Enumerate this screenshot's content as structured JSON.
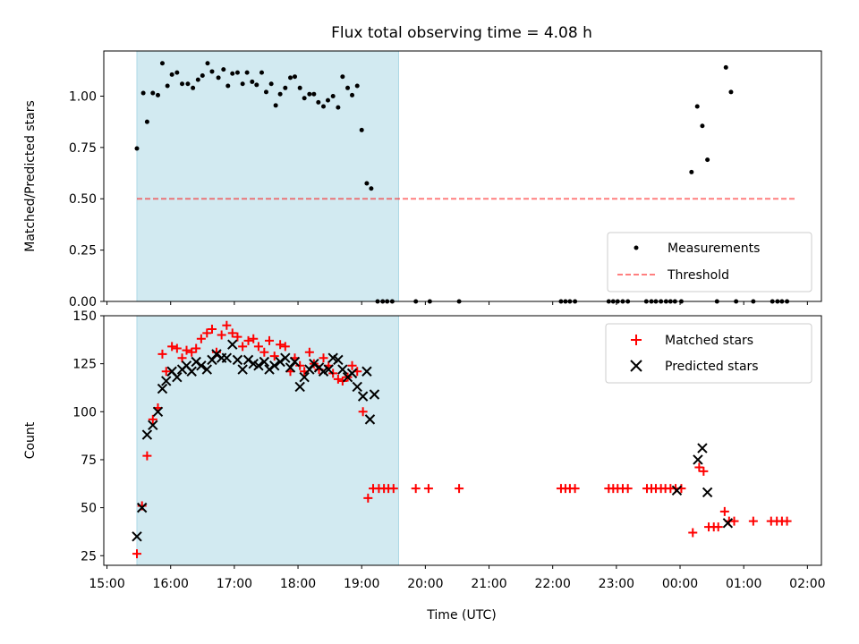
{
  "title": "Flux total observing time = 4.08 h",
  "colors": {
    "shade": "#add8e6",
    "threshold": "#ff0000",
    "matched": "#ff0000",
    "predicted": "#000000",
    "measure": "#000000"
  },
  "chart_data": [
    {
      "type": "scatter",
      "name": "ratio",
      "ylabel": "Matched/Predicted stars",
      "xlim": [
        -0.05,
        11.22
      ],
      "ylim": [
        0.0,
        1.22
      ],
      "yticks": [
        0.0,
        0.25,
        0.5,
        0.75,
        1.0
      ],
      "ytick_labels": [
        "0.00",
        "0.25",
        "0.50",
        "0.75",
        "1.00"
      ],
      "shaded_span": [
        0.47,
        4.58
      ],
      "threshold": {
        "label": "Threshold",
        "y": 0.5,
        "x": [
          0.47,
          10.8
        ]
      },
      "legend_position": "lower-right",
      "series": [
        {
          "name": "Measurements",
          "points": [
            [
              0.47,
              0.745
            ],
            [
              0.57,
              1.015
            ],
            [
              0.63,
              0.875
            ],
            [
              0.72,
              1.015
            ],
            [
              0.8,
              1.005
            ],
            [
              0.87,
              1.16
            ],
            [
              0.95,
              1.05
            ],
            [
              1.02,
              1.105
            ],
            [
              1.1,
              1.115
            ],
            [
              1.18,
              1.06
            ],
            [
              1.27,
              1.06
            ],
            [
              1.35,
              1.04
            ],
            [
              1.43,
              1.08
            ],
            [
              1.5,
              1.1
            ],
            [
              1.58,
              1.16
            ],
            [
              1.65,
              1.12
            ],
            [
              1.75,
              1.09
            ],
            [
              1.83,
              1.13
            ],
            [
              1.9,
              1.05
            ],
            [
              1.97,
              1.11
            ],
            [
              2.05,
              1.115
            ],
            [
              2.13,
              1.06
            ],
            [
              2.2,
              1.115
            ],
            [
              2.28,
              1.07
            ],
            [
              2.35,
              1.055
            ],
            [
              2.43,
              1.115
            ],
            [
              2.5,
              1.02
            ],
            [
              2.58,
              1.06
            ],
            [
              2.65,
              0.955
            ],
            [
              2.72,
              1.01
            ],
            [
              2.8,
              1.04
            ],
            [
              2.88,
              1.09
            ],
            [
              2.95,
              1.095
            ],
            [
              3.03,
              1.04
            ],
            [
              3.1,
              0.99
            ],
            [
              3.18,
              1.01
            ],
            [
              3.25,
              1.01
            ],
            [
              3.32,
              0.97
            ],
            [
              3.4,
              0.95
            ],
            [
              3.47,
              0.98
            ],
            [
              3.55,
              1.0
            ],
            [
              3.63,
              0.945
            ],
            [
              3.7,
              1.095
            ],
            [
              3.78,
              1.04
            ],
            [
              3.85,
              1.005
            ],
            [
              3.93,
              1.05
            ],
            [
              4.0,
              0.835
            ],
            [
              4.08,
              0.575
            ],
            [
              4.15,
              0.55
            ],
            [
              4.25,
              0.0
            ],
            [
              4.33,
              0.0
            ],
            [
              4.4,
              0.0
            ],
            [
              4.48,
              0.0
            ],
            [
              4.85,
              0.0
            ],
            [
              5.07,
              0.0
            ],
            [
              5.53,
              0.0
            ],
            [
              7.13,
              0.0
            ],
            [
              7.2,
              0.0
            ],
            [
              7.27,
              0.0
            ],
            [
              7.35,
              0.0
            ],
            [
              7.88,
              0.0
            ],
            [
              7.95,
              0.0
            ],
            [
              8.02,
              0.0
            ],
            [
              8.1,
              0.0
            ],
            [
              8.18,
              0.0
            ],
            [
              8.47,
              0.0
            ],
            [
              8.55,
              0.0
            ],
            [
              8.62,
              0.0
            ],
            [
              8.7,
              0.0
            ],
            [
              8.78,
              0.0
            ],
            [
              8.85,
              0.0
            ],
            [
              8.92,
              0.0
            ],
            [
              9.02,
              0.0
            ],
            [
              9.18,
              0.63
            ],
            [
              9.27,
              0.95
            ],
            [
              9.35,
              0.855
            ],
            [
              9.43,
              0.69
            ],
            [
              9.58,
              0.0
            ],
            [
              9.72,
              1.14
            ],
            [
              9.8,
              1.02
            ],
            [
              9.88,
              0.0
            ],
            [
              10.15,
              0.0
            ],
            [
              10.45,
              0.0
            ],
            [
              10.53,
              0.0
            ],
            [
              10.6,
              0.0
            ],
            [
              10.68,
              0.0
            ]
          ]
        }
      ]
    },
    {
      "type": "scatter",
      "name": "count",
      "xlabel": "Time (UTC)",
      "ylabel": "Count",
      "xlim": [
        -0.05,
        11.22
      ],
      "ylim": [
        20,
        150
      ],
      "yticks": [
        25,
        50,
        75,
        100,
        125,
        150
      ],
      "ytick_labels": [
        "25",
        "50",
        "75",
        "100",
        "125",
        "150"
      ],
      "xticks": [
        0,
        1,
        2,
        3,
        4,
        5,
        6,
        7,
        8,
        9,
        10,
        11
      ],
      "xtick_labels": [
        "15:00",
        "16:00",
        "17:00",
        "18:00",
        "19:00",
        "20:00",
        "21:00",
        "22:00",
        "23:00",
        "00:00",
        "01:00",
        "02:00"
      ],
      "shaded_span": [
        0.47,
        4.58
      ],
      "legend_position": "top-right",
      "series": [
        {
          "name": "Matched stars",
          "marker": "plus",
          "points": [
            [
              0.47,
              26
            ],
            [
              0.55,
              51
            ],
            [
              0.63,
              77
            ],
            [
              0.72,
              96
            ],
            [
              0.8,
              102
            ],
            [
              0.87,
              130
            ],
            [
              0.93,
              121
            ],
            [
              1.02,
              134
            ],
            [
              1.1,
              133
            ],
            [
              1.18,
              128
            ],
            [
              1.25,
              132
            ],
            [
              1.33,
              131
            ],
            [
              1.4,
              133
            ],
            [
              1.48,
              138
            ],
            [
              1.57,
              141
            ],
            [
              1.65,
              143
            ],
            [
              1.72,
              131
            ],
            [
              1.8,
              140
            ],
            [
              1.88,
              145
            ],
            [
              1.97,
              141
            ],
            [
              2.05,
              139
            ],
            [
              2.13,
              134
            ],
            [
              2.22,
              137
            ],
            [
              2.3,
              138
            ],
            [
              2.38,
              134
            ],
            [
              2.47,
              131
            ],
            [
              2.55,
              137
            ],
            [
              2.63,
              129
            ],
            [
              2.72,
              135
            ],
            [
              2.8,
              134
            ],
            [
              2.88,
              121
            ],
            [
              2.95,
              128
            ],
            [
              3.03,
              124
            ],
            [
              3.1,
              121
            ],
            [
              3.18,
              131
            ],
            [
              3.25,
              125
            ],
            [
              3.33,
              122
            ],
            [
              3.4,
              128
            ],
            [
              3.48,
              124
            ],
            [
              3.55,
              120
            ],
            [
              3.63,
              117
            ],
            [
              3.7,
              116
            ],
            [
              3.78,
              118
            ],
            [
              3.85,
              124
            ],
            [
              3.93,
              121
            ],
            [
              4.02,
              100
            ],
            [
              4.1,
              55
            ],
            [
              4.18,
              60
            ],
            [
              4.27,
              60
            ],
            [
              4.35,
              60
            ],
            [
              4.42,
              60
            ],
            [
              4.5,
              60
            ],
            [
              4.85,
              60
            ],
            [
              5.05,
              60
            ],
            [
              5.53,
              60
            ],
            [
              7.13,
              60
            ],
            [
              7.2,
              60
            ],
            [
              7.27,
              60
            ],
            [
              7.35,
              60
            ],
            [
              7.88,
              60
            ],
            [
              7.95,
              60
            ],
            [
              8.02,
              60
            ],
            [
              8.1,
              60
            ],
            [
              8.18,
              60
            ],
            [
              8.48,
              60
            ],
            [
              8.55,
              60
            ],
            [
              8.62,
              60
            ],
            [
              8.7,
              60
            ],
            [
              8.77,
              60
            ],
            [
              8.85,
              60
            ],
            [
              8.93,
              60
            ],
            [
              9.02,
              60
            ],
            [
              9.2,
              37
            ],
            [
              9.3,
              71
            ],
            [
              9.37,
              69
            ],
            [
              9.45,
              40
            ],
            [
              9.53,
              40
            ],
            [
              9.6,
              40
            ],
            [
              9.7,
              48
            ],
            [
              9.77,
              43
            ],
            [
              9.85,
              43
            ],
            [
              10.15,
              43
            ],
            [
              10.43,
              43
            ],
            [
              10.52,
              43
            ],
            [
              10.6,
              43
            ],
            [
              10.68,
              43
            ]
          ]
        },
        {
          "name": "Predicted stars",
          "marker": "x",
          "points": [
            [
              0.47,
              35
            ],
            [
              0.55,
              50
            ],
            [
              0.63,
              88
            ],
            [
              0.72,
              93
            ],
            [
              0.8,
              100
            ],
            [
              0.87,
              112
            ],
            [
              0.93,
              116
            ],
            [
              1.02,
              121
            ],
            [
              1.1,
              118
            ],
            [
              1.18,
              122
            ],
            [
              1.25,
              124
            ],
            [
              1.33,
              121
            ],
            [
              1.4,
              126
            ],
            [
              1.48,
              124
            ],
            [
              1.57,
              122
            ],
            [
              1.65,
              127
            ],
            [
              1.72,
              130
            ],
            [
              1.8,
              128
            ],
            [
              1.88,
              128
            ],
            [
              1.97,
              135
            ],
            [
              2.05,
              127
            ],
            [
              2.13,
              122
            ],
            [
              2.22,
              127
            ],
            [
              2.3,
              125
            ],
            [
              2.38,
              124
            ],
            [
              2.47,
              126
            ],
            [
              2.55,
              122
            ],
            [
              2.63,
              124
            ],
            [
              2.72,
              126
            ],
            [
              2.8,
              128
            ],
            [
              2.88,
              123
            ],
            [
              2.95,
              126
            ],
            [
              3.03,
              113
            ],
            [
              3.1,
              118
            ],
            [
              3.18,
              122
            ],
            [
              3.25,
              125
            ],
            [
              3.33,
              123
            ],
            [
              3.4,
              121
            ],
            [
              3.48,
              122
            ],
            [
              3.55,
              128
            ],
            [
              3.63,
              127
            ],
            [
              3.7,
              122
            ],
            [
              3.78,
              118
            ],
            [
              3.85,
              120
            ],
            [
              3.93,
              113
            ],
            [
              4.02,
              108
            ],
            [
              4.08,
              121
            ],
            [
              4.13,
              96
            ],
            [
              4.2,
              109
            ],
            [
              8.95,
              59
            ],
            [
              9.28,
              75
            ],
            [
              9.35,
              81
            ],
            [
              9.43,
              58
            ],
            [
              9.75,
              42
            ]
          ]
        }
      ]
    }
  ]
}
